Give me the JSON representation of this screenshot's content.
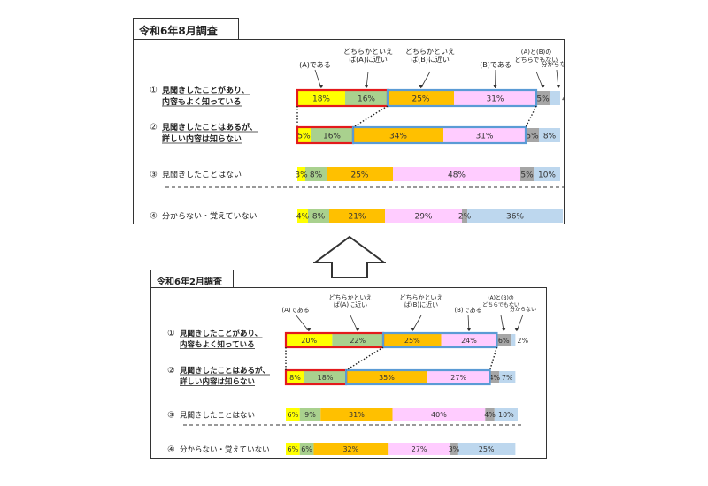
{
  "chart_data": [
    {
      "type": "stacked-bar",
      "title": "令和6年8月調査",
      "legend": [
        "(A)である",
        "どちらかといえば(A)に近い",
        "どちらかといえば(B)に近い",
        "(B)である",
        "(A)と(B)のどちらでもない",
        "分からない"
      ],
      "rows": [
        {
          "num": "①",
          "label": [
            "見聞きしたことがあり、",
            "内容もよく知っている"
          ],
          "values": [
            18,
            16,
            25,
            31,
            5,
            4
          ]
        },
        {
          "num": "②",
          "label": [
            "見聞きしたことはあるが、",
            "詳しい内容は知らない"
          ],
          "values": [
            5,
            16,
            34,
            31,
            5,
            8
          ]
        },
        {
          "num": "③",
          "label": [
            "見聞きしたことはない"
          ],
          "values": [
            3,
            8,
            25,
            48,
            5,
            10
          ]
        },
        {
          "num": "④",
          "label": [
            "分からない・覚えていない"
          ],
          "values": [
            4,
            8,
            21,
            29,
            2,
            36
          ]
        }
      ]
    },
    {
      "type": "stacked-bar",
      "title": "令和6年2月調査",
      "legend": [
        "(A)である",
        "どちらかといえば(A)に近い",
        "どちらかといえば(B)に近い",
        "(B)である",
        "(A)と(B)のどちらでもない",
        "分からない"
      ],
      "rows": [
        {
          "num": "①",
          "label": [
            "見聞きしたことがあり、",
            "内容もよく知っている"
          ],
          "values": [
            20,
            22,
            25,
            24,
            6,
            2
          ]
        },
        {
          "num": "②",
          "label": [
            "見聞きしたことはあるが、",
            "詳しい内容は知らない"
          ],
          "values": [
            8,
            18,
            35,
            27,
            4,
            7
          ]
        },
        {
          "num": "③",
          "label": [
            "見聞きしたことはない"
          ],
          "values": [
            6,
            9,
            31,
            40,
            4,
            10
          ]
        },
        {
          "num": "④",
          "label": [
            "分からない・覚えていない"
          ],
          "values": [
            6,
            6,
            32,
            27,
            3,
            25
          ]
        }
      ]
    }
  ],
  "value_suffix": "%",
  "colors": [
    "#ffff00",
    "#a9d18e",
    "#ffc000",
    "#ffccff",
    "#a6a6a6",
    "#bdd7ee"
  ],
  "highlight": {
    "a_color": "#e31a1c",
    "b_color": "#5b9bd5"
  }
}
